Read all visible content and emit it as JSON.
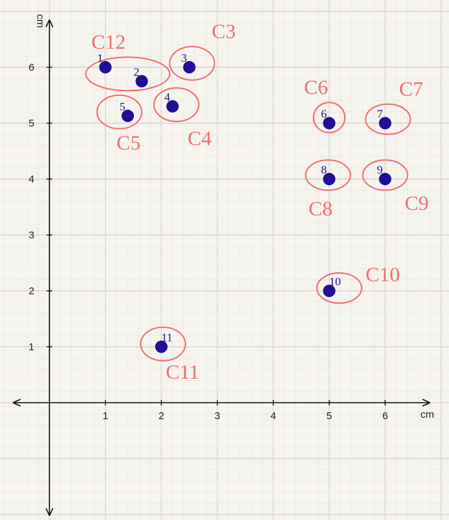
{
  "chart_data": {
    "type": "scatter",
    "title": "",
    "xlabel": "cm",
    "ylabel": "cm",
    "xlim": [
      -0.7,
      6.9
    ],
    "ylim": [
      -1.9,
      6.9
    ],
    "x_ticks": [
      1,
      2,
      3,
      4,
      5,
      6
    ],
    "y_ticks": [
      1,
      2,
      3,
      4,
      5,
      6
    ],
    "x_tick_labels": [
      "1",
      "2",
      "3",
      "4",
      "5",
      "6"
    ],
    "y_tick_labels": [
      "1",
      "2",
      "3",
      "4",
      "5",
      "6"
    ],
    "grid": true,
    "point_color": "#1e0f96",
    "cluster_color": "#f06f6f",
    "points": [
      {
        "label": "1",
        "x": 1.0,
        "y": 6.0
      },
      {
        "label": "2",
        "x": 1.65,
        "y": 5.75
      },
      {
        "label": "3",
        "x": 2.5,
        "y": 6.0
      },
      {
        "label": "4",
        "x": 2.2,
        "y": 5.3
      },
      {
        "label": "5",
        "x": 1.4,
        "y": 5.13
      },
      {
        "label": "6",
        "x": 5.0,
        "y": 5.0
      },
      {
        "label": "7",
        "x": 6.0,
        "y": 5.0
      },
      {
        "label": "8",
        "x": 5.0,
        "y": 4.0
      },
      {
        "label": "9",
        "x": 6.0,
        "y": 4.0
      },
      {
        "label": "10",
        "x": 5.0,
        "y": 2.0
      },
      {
        "label": "11",
        "x": 2.0,
        "y": 1.0
      }
    ],
    "clusters": [
      {
        "label": "C12",
        "members": [
          "1",
          "2"
        ],
        "cx": 1.4,
        "cy": 5.88,
        "rx": 0.75,
        "ry": 0.3
      },
      {
        "label": "C3",
        "members": [
          "3"
        ],
        "cx": 2.55,
        "cy": 6.07,
        "rx": 0.4,
        "ry": 0.3
      },
      {
        "label": "C4",
        "members": [
          "4"
        ],
        "cx": 2.27,
        "cy": 5.33,
        "rx": 0.4,
        "ry": 0.3
      },
      {
        "label": "C5",
        "members": [
          "5"
        ],
        "cx": 1.25,
        "cy": 5.2,
        "rx": 0.4,
        "ry": 0.3
      },
      {
        "label": "C6",
        "members": [
          "6"
        ],
        "cx": 5.0,
        "cy": 5.1,
        "rx": 0.28,
        "ry": 0.27
      },
      {
        "label": "C7",
        "members": [
          "7"
        ],
        "cx": 6.05,
        "cy": 5.07,
        "rx": 0.4,
        "ry": 0.27
      },
      {
        "label": "C8",
        "members": [
          "8"
        ],
        "cx": 4.98,
        "cy": 4.07,
        "rx": 0.4,
        "ry": 0.27
      },
      {
        "label": "C9",
        "members": [
          "9"
        ],
        "cx": 6.0,
        "cy": 4.07,
        "rx": 0.4,
        "ry": 0.27
      },
      {
        "label": "C10",
        "members": [
          "10"
        ],
        "cx": 5.18,
        "cy": 2.05,
        "rx": 0.4,
        "ry": 0.27
      },
      {
        "label": "C11",
        "members": [
          "11"
        ],
        "cx": 2.03,
        "cy": 1.05,
        "rx": 0.4,
        "ry": 0.3
      }
    ]
  }
}
